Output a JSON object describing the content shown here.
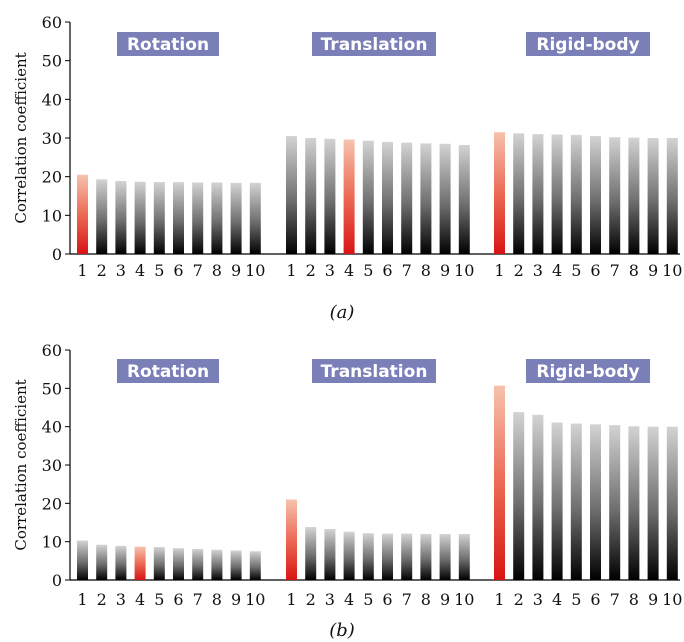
{
  "chart_data": [
    {
      "type": "bar",
      "caption": "(a)",
      "ylabel": "Correlation coefficient",
      "ylim": [
        0,
        60
      ],
      "yticks": [
        "0",
        "10",
        "20",
        "30",
        "40",
        "50",
        "60"
      ],
      "grid": false,
      "groups": [
        {
          "label": "Rotation",
          "categories": [
            "1",
            "2",
            "3",
            "4",
            "5",
            "6",
            "7",
            "8",
            "9",
            "10"
          ],
          "values": [
            20.5,
            19.3,
            18.9,
            18.7,
            18.6,
            18.6,
            18.5,
            18.5,
            18.4,
            18.4
          ],
          "highlight_index": 0
        },
        {
          "label": "Translation",
          "categories": [
            "1",
            "2",
            "3",
            "4",
            "5",
            "6",
            "7",
            "8",
            "9",
            "10"
          ],
          "values": [
            30.5,
            30.0,
            29.8,
            29.6,
            29.3,
            29.0,
            28.8,
            28.6,
            28.5,
            28.2
          ],
          "highlight_index": 3
        },
        {
          "label": "Rigid-body",
          "categories": [
            "1",
            "2",
            "3",
            "4",
            "5",
            "6",
            "7",
            "8",
            "9",
            "10"
          ],
          "values": [
            31.5,
            31.2,
            31.0,
            30.9,
            30.8,
            30.5,
            30.2,
            30.1,
            30.0,
            30.0
          ],
          "highlight_index": 0
        }
      ]
    },
    {
      "type": "bar",
      "caption": "(b)",
      "ylabel": "Correlation coefficient",
      "ylim": [
        0,
        60
      ],
      "yticks": [
        "0",
        "10",
        "20",
        "30",
        "40",
        "50",
        "60"
      ],
      "grid": false,
      "groups": [
        {
          "label": "Rotation",
          "categories": [
            "1",
            "2",
            "3",
            "4",
            "5",
            "6",
            "7",
            "8",
            "9",
            "10"
          ],
          "values": [
            10.3,
            9.2,
            8.9,
            8.7,
            8.6,
            8.3,
            8.1,
            7.9,
            7.7,
            7.5
          ],
          "highlight_index": 3
        },
        {
          "label": "Translation",
          "categories": [
            "1",
            "2",
            "3",
            "4",
            "5",
            "6",
            "7",
            "8",
            "9",
            "10"
          ],
          "values": [
            21.0,
            13.8,
            13.3,
            12.6,
            12.2,
            12.1,
            12.1,
            12.0,
            12.0,
            12.0
          ],
          "highlight_index": 0
        },
        {
          "label": "Rigid-body",
          "categories": [
            "1",
            "2",
            "3",
            "4",
            "5",
            "6",
            "7",
            "8",
            "9",
            "10"
          ],
          "values": [
            50.7,
            43.8,
            43.1,
            41.1,
            40.8,
            40.6,
            40.4,
            40.1,
            40.0,
            40.0
          ],
          "highlight_index": 0
        }
      ]
    }
  ],
  "colors": {
    "label_box": "#7b7fb8",
    "bar_highlight_top": "#f3b9a3",
    "bar_highlight_bottom": "#e0201b",
    "bar_top": "#d0d0d0",
    "bar_bottom": "#000000"
  }
}
